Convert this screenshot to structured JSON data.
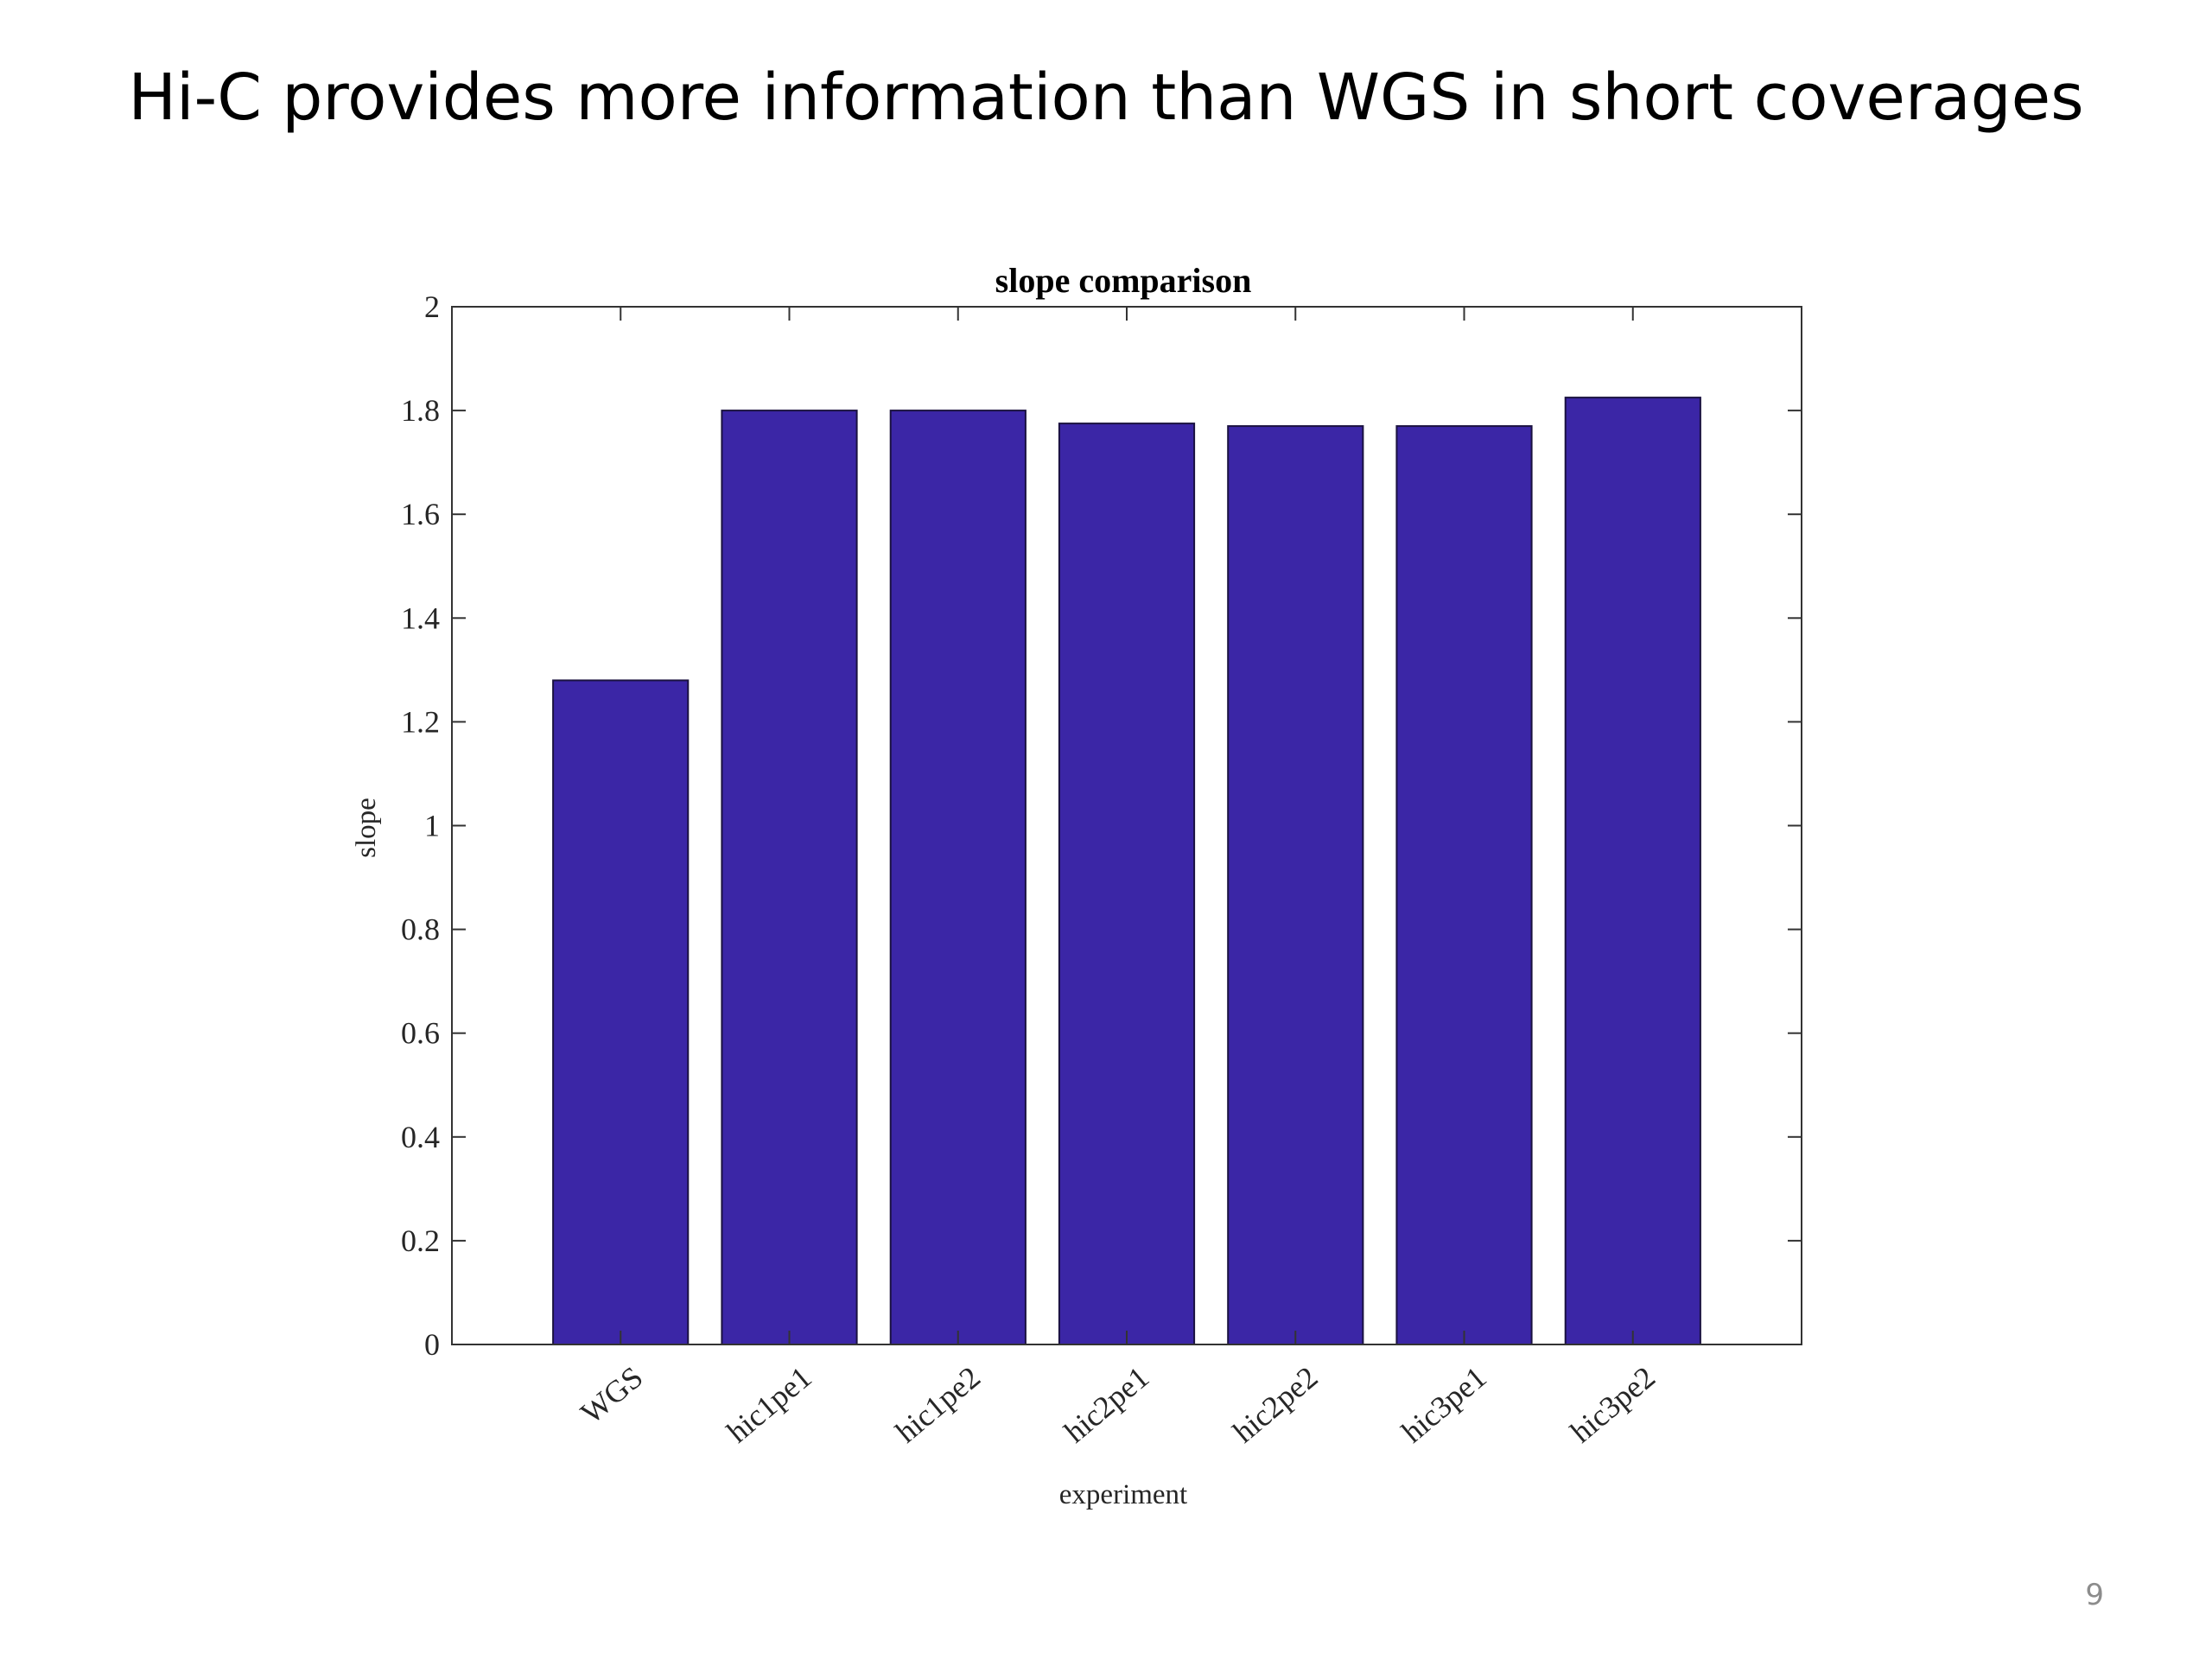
{
  "slide": {
    "title": "Hi-C provides more information than WGS in short coverages",
    "page_number": "9"
  },
  "colors": {
    "bar_fill": "#3b26a6",
    "bar_stroke": "#1a1140",
    "axis": "#333333"
  },
  "chart_data": {
    "type": "bar",
    "title": "slope comparison",
    "xlabel": "experiment",
    "ylabel": "slope",
    "categories": [
      "WGS",
      "hic1pe1",
      "hic1pe2",
      "hic2pe1",
      "hic2pe2",
      "hic3pe1",
      "hic3pe2"
    ],
    "values": [
      1.28,
      1.8,
      1.8,
      1.775,
      1.77,
      1.77,
      1.825
    ],
    "ylim": [
      0,
      2
    ],
    "yticks": [
      "0",
      "0.2",
      "0.4",
      "0.6",
      "0.8",
      "1",
      "1.2",
      "1.4",
      "1.6",
      "1.8",
      "2"
    ],
    "grid": false,
    "legend": "none"
  }
}
